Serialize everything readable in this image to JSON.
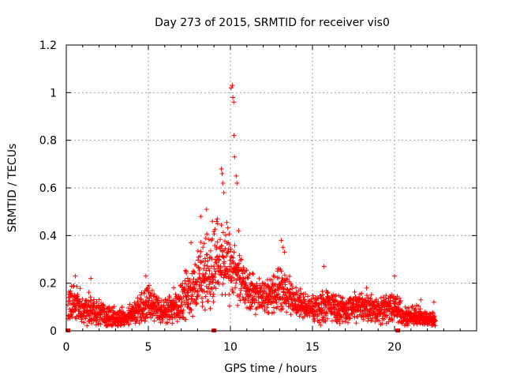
{
  "chart_data": {
    "type": "scatter",
    "title": "Day 273 of 2015, SRMTID for receiver vis0",
    "xlabel": "GPS time / hours",
    "ylabel": "SRMTID / TECUs",
    "xlim": [
      0,
      25
    ],
    "ylim": [
      0,
      1.2
    ],
    "xticks": [
      0,
      5,
      10,
      15,
      20
    ],
    "xtick_labels": [
      "0",
      "5",
      "10",
      "15",
      "20"
    ],
    "yticks": [
      0,
      0.2,
      0.4,
      0.6,
      0.8,
      1.0,
      1.2
    ],
    "ytick_labels": [
      "0",
      "0.2",
      "0.4",
      "0.6",
      "0.8",
      "1",
      "1.2"
    ],
    "grid": true,
    "marker": "plus",
    "series": [
      {
        "name": "SRMTID",
        "color": "#ff0000",
        "envelope": {
          "hours": [
            0.1,
            0.5,
            1.0,
            1.5,
            2.0,
            2.5,
            3.0,
            3.5,
            4.0,
            4.5,
            5.0,
            5.5,
            6.0,
            6.5,
            7.0,
            7.5,
            8.0,
            8.5,
            9.0,
            9.5,
            10.0,
            10.5,
            11.0,
            11.5,
            12.0,
            12.5,
            13.0,
            13.5,
            14.0,
            14.5,
            15.0,
            15.5,
            16.0,
            16.5,
            17.0,
            17.5,
            18.0,
            18.5,
            19.0,
            19.5,
            20.0,
            20.5,
            21.0,
            21.5,
            22.0,
            22.5
          ],
          "typical": [
            0.11,
            0.12,
            0.09,
            0.09,
            0.07,
            0.06,
            0.05,
            0.06,
            0.07,
            0.09,
            0.12,
            0.09,
            0.08,
            0.1,
            0.13,
            0.17,
            0.21,
            0.24,
            0.28,
            0.3,
            0.26,
            0.22,
            0.18,
            0.15,
            0.14,
            0.15,
            0.18,
            0.16,
            0.12,
            0.1,
            0.09,
            0.1,
            0.11,
            0.09,
            0.09,
            0.1,
            0.11,
            0.1,
            0.09,
            0.09,
            0.1,
            0.07,
            0.06,
            0.06,
            0.05,
            0.05
          ],
          "spread": [
            0.06,
            0.07,
            0.06,
            0.06,
            0.05,
            0.04,
            0.04,
            0.04,
            0.04,
            0.05,
            0.07,
            0.05,
            0.05,
            0.06,
            0.08,
            0.1,
            0.12,
            0.14,
            0.15,
            0.15,
            0.13,
            0.1,
            0.08,
            0.07,
            0.06,
            0.07,
            0.08,
            0.07,
            0.06,
            0.05,
            0.05,
            0.06,
            0.06,
            0.05,
            0.05,
            0.06,
            0.06,
            0.06,
            0.05,
            0.05,
            0.06,
            0.04,
            0.04,
            0.04,
            0.03,
            0.03
          ]
        },
        "peaks": [
          {
            "x": 0.55,
            "y": 0.23
          },
          {
            "x": 1.5,
            "y": 0.22
          },
          {
            "x": 4.85,
            "y": 0.23
          },
          {
            "x": 7.6,
            "y": 0.37
          },
          {
            "x": 8.2,
            "y": 0.48
          },
          {
            "x": 8.55,
            "y": 0.51
          },
          {
            "x": 8.9,
            "y": 0.46
          },
          {
            "x": 9.2,
            "y": 0.47
          },
          {
            "x": 9.45,
            "y": 0.68
          },
          {
            "x": 9.5,
            "y": 0.66
          },
          {
            "x": 9.55,
            "y": 0.62
          },
          {
            "x": 9.6,
            "y": 0.58
          },
          {
            "x": 10.05,
            "y": 1.02
          },
          {
            "x": 10.12,
            "y": 1.03
          },
          {
            "x": 10.15,
            "y": 0.98
          },
          {
            "x": 10.2,
            "y": 0.96
          },
          {
            "x": 10.22,
            "y": 0.82
          },
          {
            "x": 10.25,
            "y": 0.73
          },
          {
            "x": 10.35,
            "y": 0.65
          },
          {
            "x": 10.4,
            "y": 0.62
          },
          {
            "x": 10.5,
            "y": 0.42
          },
          {
            "x": 13.1,
            "y": 0.38
          },
          {
            "x": 13.2,
            "y": 0.35
          },
          {
            "x": 13.3,
            "y": 0.33
          },
          {
            "x": 15.7,
            "y": 0.27
          },
          {
            "x": 18.3,
            "y": 0.18
          },
          {
            "x": 20.0,
            "y": 0.23
          },
          {
            "x": 21.6,
            "y": 0.13
          },
          {
            "x": 22.4,
            "y": 0.12
          }
        ],
        "zeros": [
          0.1,
          9.0,
          20.2
        ]
      }
    ]
  }
}
